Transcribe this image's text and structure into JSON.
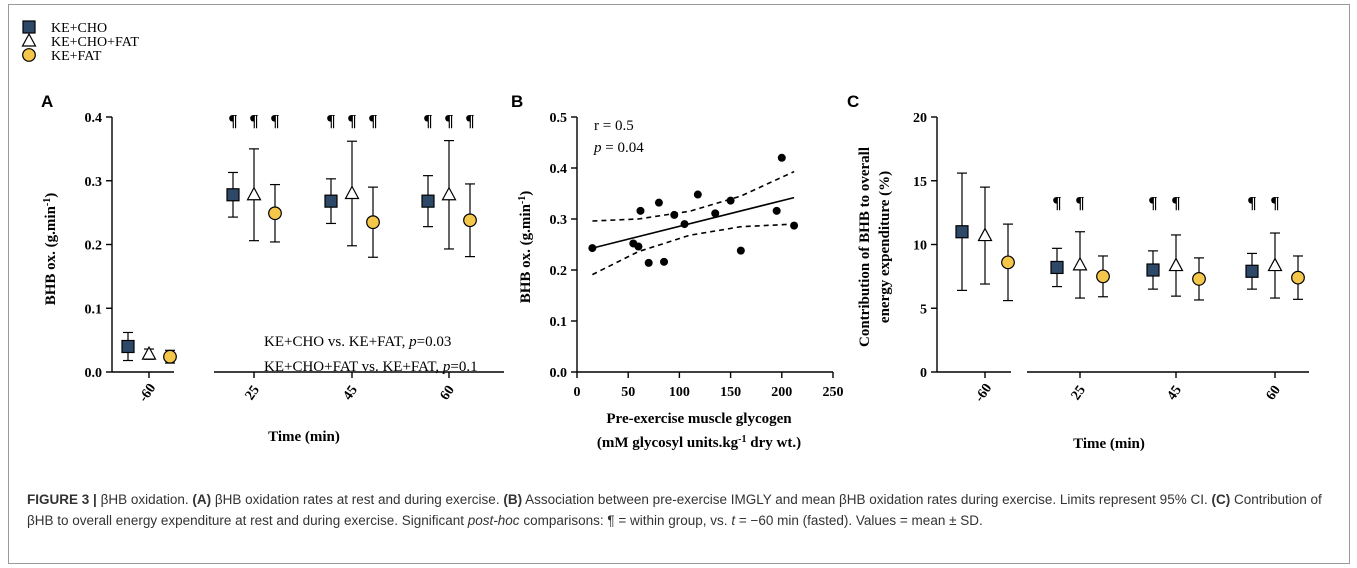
{
  "legend": {
    "items": [
      {
        "label": "KE+CHO",
        "marker": "square",
        "color": "#2e4868"
      },
      {
        "label": "KE+CHO+FAT",
        "marker": "triangle",
        "color": "#ffffff"
      },
      {
        "label": "KE+FAT",
        "marker": "circle",
        "color": "#f4c64a"
      }
    ]
  },
  "colors": {
    "ke_cho": "#2e4868",
    "ke_cho_fat": "#ffffff",
    "ke_fat": "#f4c64a",
    "axis": "#000000"
  },
  "caption": {
    "figure_label": "FIGURE 3 |",
    "title": "βHB oxidation.",
    "a_label": "(A)",
    "a_text": "βHB oxidation rates at rest and during exercise.",
    "b_label": "(B)",
    "b_text": "Association between pre-exercise IMGLY and mean βHB oxidation rates during exercise. Limits represent 95% CI.",
    "c_label": "(C)",
    "c_text": "Contribution of βHB to overall energy expenditure at rest and during exercise. Significant",
    "posthoc": "post-hoc",
    "c_text2": "comparisons: ¶ = within group, vs.",
    "t_symbol": "t",
    "c_text3": "= −60 min (fasted). Values = mean ± SD."
  },
  "chart_data": [
    {
      "panel": "A",
      "type": "scatter",
      "xlabel": "Time (min)",
      "ylabel": "BHB ox. (g.min-1)",
      "categories": [
        "-60",
        "25",
        "45",
        "60"
      ],
      "ylim": [
        0,
        0.4
      ],
      "yticks": [
        "0.0",
        "0.1",
        "0.2",
        "0.3",
        "0.4"
      ],
      "series": [
        {
          "name": "KE+CHO",
          "marker": "square",
          "values": [
            0.04,
            0.278,
            0.268,
            0.268
          ],
          "sd": [
            0.022,
            0.035,
            0.035,
            0.04
          ]
        },
        {
          "name": "KE+CHO+FAT",
          "marker": "triangle",
          "values": [
            0.028,
            0.278,
            0.28,
            0.278
          ],
          "sd": [
            0.008,
            0.072,
            0.082,
            0.085
          ]
        },
        {
          "name": "KE+FAT",
          "marker": "circle",
          "values": [
            0.024,
            0.249,
            0.235,
            0.238
          ],
          "sd": [
            0.01,
            0.045,
            0.055,
            0.057
          ]
        }
      ],
      "significance": [
        {
          "category": "25",
          "symbols": [
            "¶",
            "¶",
            "¶"
          ]
        },
        {
          "category": "45",
          "symbols": [
            "¶",
            "¶",
            "¶"
          ]
        },
        {
          "category": "60",
          "symbols": [
            "¶",
            "¶",
            "¶"
          ]
        }
      ],
      "annotations": [
        {
          "text": "KE+CHO vs. KE+FAT, ",
          "italic": "p",
          "value": "=0.03"
        },
        {
          "text": "KE+CHO+FAT vs. KE+FAT, ",
          "italic": "p",
          "value": "=0.1"
        }
      ]
    },
    {
      "panel": "B",
      "type": "scatter",
      "xlabel_line1": "Pre-exercise muscle glycogen",
      "xlabel_line2": "(mM glycosyl units.kg-1 dry wt.)",
      "ylabel": "BHB ox. (g.min-1)",
      "xlim": [
        0,
        250
      ],
      "ylim": [
        0,
        0.5
      ],
      "xticks": [
        0,
        50,
        100,
        150,
        200,
        250
      ],
      "yticks": [
        "0.0",
        "0.1",
        "0.2",
        "0.3",
        "0.4",
        "0.5"
      ],
      "points": [
        {
          "x": 15,
          "y": 0.243
        },
        {
          "x": 55,
          "y": 0.252
        },
        {
          "x": 60,
          "y": 0.246
        },
        {
          "x": 62,
          "y": 0.316
        },
        {
          "x": 70,
          "y": 0.214
        },
        {
          "x": 80,
          "y": 0.332
        },
        {
          "x": 85,
          "y": 0.216
        },
        {
          "x": 95,
          "y": 0.308
        },
        {
          "x": 105,
          "y": 0.29
        },
        {
          "x": 118,
          "y": 0.348
        },
        {
          "x": 135,
          "y": 0.311
        },
        {
          "x": 150,
          "y": 0.336
        },
        {
          "x": 160,
          "y": 0.238
        },
        {
          "x": 195,
          "y": 0.316
        },
        {
          "x": 200,
          "y": 0.42
        },
        {
          "x": 212,
          "y": 0.287
        }
      ],
      "fit": {
        "x": [
          15,
          212
        ],
        "y": [
          0.243,
          0.342
        ]
      },
      "ci_upper": {
        "x": [
          15,
          60,
          110,
          160,
          212
        ],
        "y": [
          0.296,
          0.3,
          0.315,
          0.345,
          0.393
        ]
      },
      "ci_lower": {
        "x": [
          15,
          60,
          110,
          160,
          212
        ],
        "y": [
          0.191,
          0.236,
          0.268,
          0.285,
          0.29
        ]
      },
      "annotations": [
        {
          "text": "r = 0.5"
        },
        {
          "italic": "p",
          "text": " = 0.04"
        }
      ]
    },
    {
      "panel": "C",
      "type": "scatter",
      "xlabel": "Time (min)",
      "ylabel_line1": "Contribution of BHB to overall",
      "ylabel_line2": "energy expenditure (%)",
      "categories": [
        "-60",
        "25",
        "45",
        "60"
      ],
      "ylim": [
        0,
        20
      ],
      "yticks": [
        "0",
        "5",
        "10",
        "15",
        "20"
      ],
      "series": [
        {
          "name": "KE+CHO",
          "marker": "square",
          "values": [
            11.0,
            8.2,
            8.0,
            7.9
          ],
          "sd": [
            4.6,
            1.5,
            1.5,
            1.4
          ]
        },
        {
          "name": "KE+CHO+FAT",
          "marker": "triangle",
          "values": [
            10.7,
            8.4,
            8.35,
            8.35
          ],
          "sd": [
            3.8,
            2.6,
            2.4,
            2.55
          ]
        },
        {
          "name": "KE+FAT",
          "marker": "circle",
          "values": [
            8.6,
            7.5,
            7.3,
            7.4
          ],
          "sd": [
            3.0,
            1.6,
            1.65,
            1.7
          ]
        }
      ],
      "significance": [
        {
          "category": "25",
          "symbols": [
            "¶",
            "¶"
          ]
        },
        {
          "category": "45",
          "symbols": [
            "¶",
            "¶"
          ]
        },
        {
          "category": "60",
          "symbols": [
            "¶",
            "¶"
          ]
        }
      ]
    }
  ]
}
